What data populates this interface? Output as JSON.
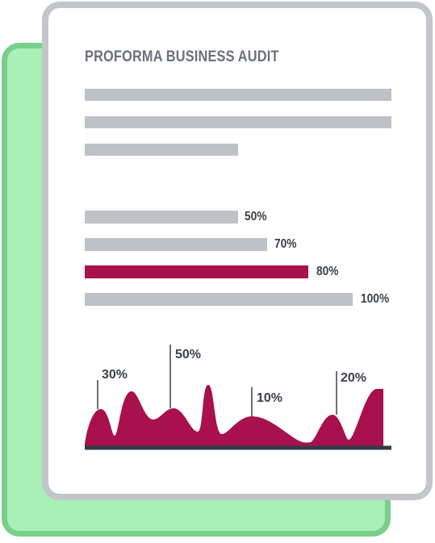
{
  "document": {
    "title": "PROFORMA BUSINESS AUDIT",
    "text_line_fractions": [
      1.0,
      1.0,
      0.5
    ]
  },
  "progress_bars": [
    {
      "label": "50%",
      "value": 50,
      "highlighted": false
    },
    {
      "label": "70%",
      "value": 70,
      "highlighted": false
    },
    {
      "label": "80%",
      "value": 80,
      "highlighted": true
    },
    {
      "label": "100%",
      "value": 100,
      "highlighted": false
    }
  ],
  "peak_labels": [
    "30%",
    "50%",
    "10%",
    "20%"
  ],
  "colors": {
    "accent": "#a8104e",
    "bar_gray": "#bec1c5",
    "card_border": "#c2c5c9",
    "back_sheet": "#a8f0b8",
    "back_sheet_border": "#78cf8a",
    "title": "#6b7079",
    "label": "#3c4048",
    "baseline": "#2f3d45"
  }
}
